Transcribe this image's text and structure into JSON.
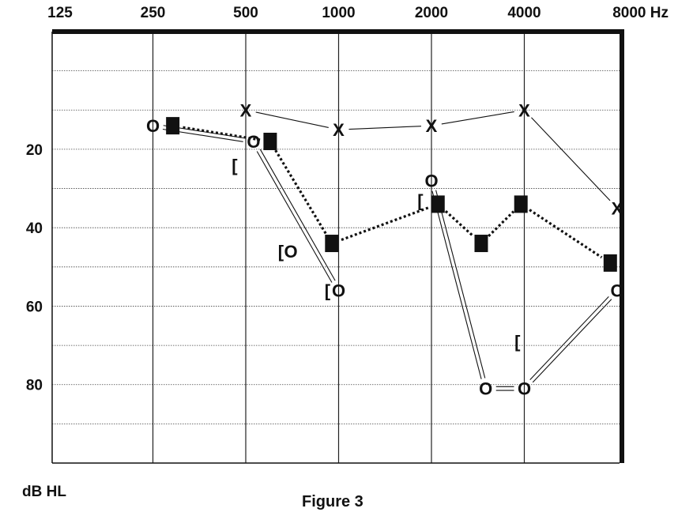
{
  "chart_data": {
    "type": "scatter",
    "title": "",
    "caption": "Figure 3",
    "x_axis": {
      "scale": "log2",
      "tick_labels": [
        "125",
        "250",
        "500",
        "1000",
        "2000",
        "4000",
        "8000 Hz"
      ],
      "tick_values": [
        125,
        250,
        500,
        1000,
        2000,
        4000,
        8000
      ],
      "position": "top"
    },
    "y_axis": {
      "label": "dB HL",
      "inverted": true,
      "range": [
        -10,
        100
      ],
      "tick_labels": [
        "20",
        "40",
        "60",
        "80"
      ],
      "tick_values": [
        20,
        40,
        60,
        80
      ],
      "gridlines": [
        0,
        10,
        20,
        30,
        40,
        50,
        60,
        70,
        80,
        90
      ]
    },
    "series": [
      {
        "marker": "X",
        "connector": "single",
        "points": [
          [
            500,
            10
          ],
          [
            1000,
            15
          ],
          [
            2000,
            14
          ],
          [
            4000,
            10
          ],
          [
            8000,
            35
          ]
        ]
      },
      {
        "marker": "filled-square",
        "connector": "dotted",
        "points": [
          [
            290,
            14
          ],
          [
            600,
            18
          ],
          [
            950,
            44
          ],
          [
            2100,
            34
          ],
          [
            2900,
            44
          ],
          [
            3900,
            34
          ],
          [
            7600,
            49
          ]
        ]
      },
      {
        "marker": "O",
        "connector": "double",
        "points": [
          [
            250,
            14
          ],
          [
            530,
            18
          ],
          [
            1000,
            56
          ]
        ]
      },
      {
        "marker": "O",
        "connector": "double",
        "points": [
          [
            2000,
            28
          ],
          [
            3000,
            81
          ],
          [
            4000,
            81
          ],
          [
            8000,
            56
          ]
        ]
      },
      {
        "marker": "O",
        "connector": "none",
        "points": [
          [
            700,
            46
          ]
        ]
      },
      {
        "marker": "[",
        "connector": "none",
        "points": [
          [
            460,
            24
          ],
          [
            650,
            46
          ],
          [
            920,
            56
          ],
          [
            1840,
            33
          ],
          [
            3800,
            69
          ]
        ]
      }
    ]
  }
}
